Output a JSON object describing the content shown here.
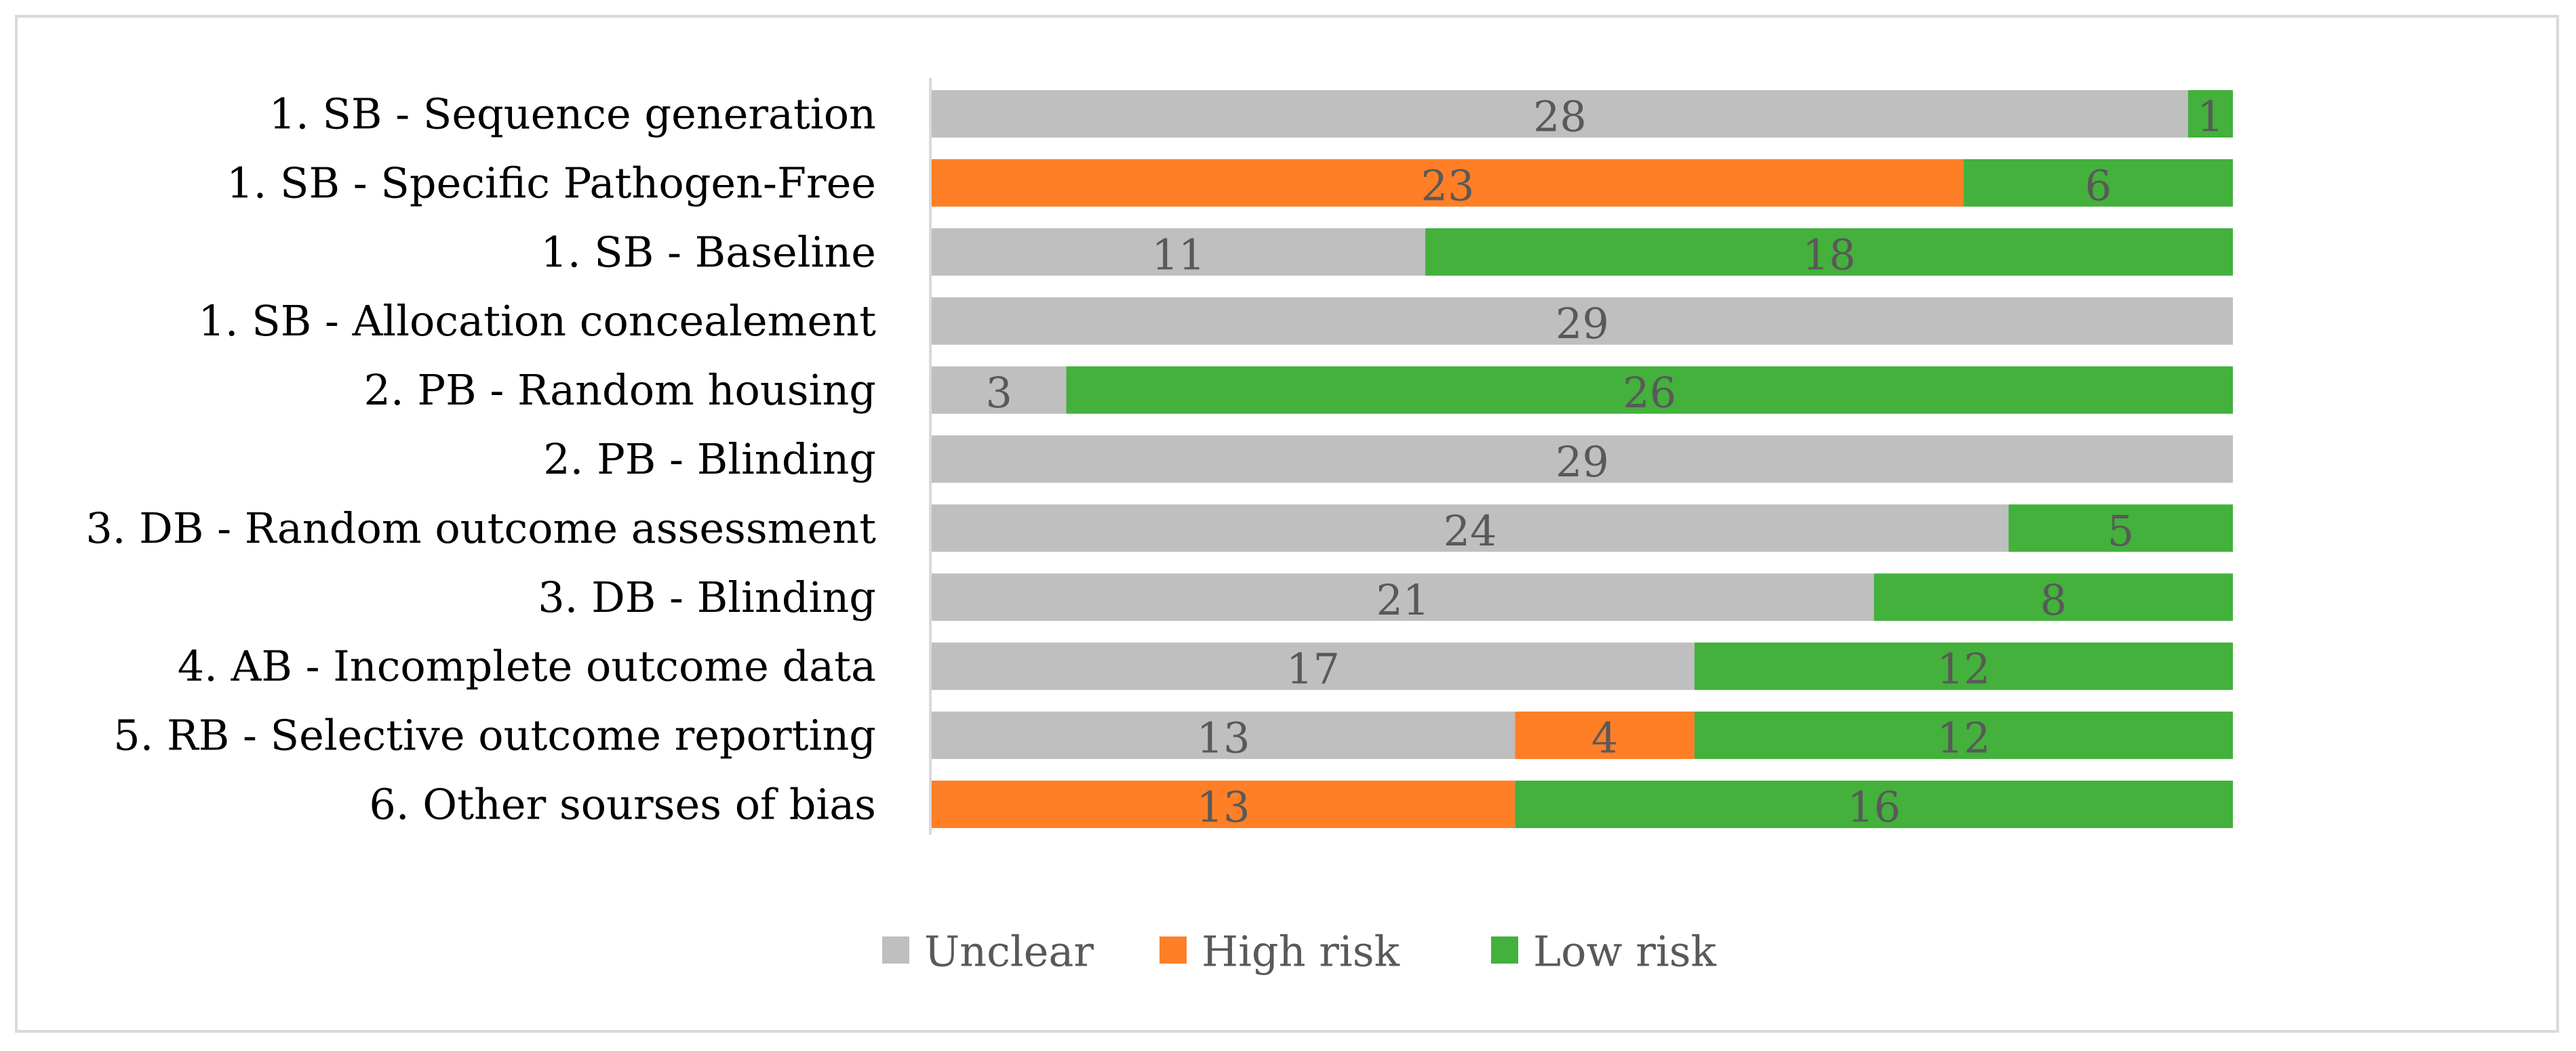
{
  "chart_data": {
    "type": "bar",
    "orientation": "horizontal",
    "stacked": true,
    "title": "",
    "xlabel": "",
    "ylabel": "",
    "xlim": [
      0,
      29
    ],
    "grid": false,
    "legend_position": "bottom",
    "categories": [
      "1. SB - Sequence generation",
      "1. SB - Specific Pathogen-Free",
      "1. SB - Baseline",
      "1. SB - Allocation concealement",
      "2. PB - Random housing",
      "2. PB - Blinding",
      "3. DB - Random outcome assessment",
      "3. DB - Blinding",
      "4. AB - Incomplete outcome data",
      "5. RB - Selective outcome reporting",
      "6. Other sourses of bias"
    ],
    "series": [
      {
        "name": "Unclear",
        "color": "#bfbfbf",
        "values": [
          28,
          0,
          11,
          29,
          3,
          29,
          24,
          21,
          17,
          13,
          0
        ]
      },
      {
        "name": "High risk",
        "color": "#ff7f27",
        "values": [
          0,
          23,
          0,
          0,
          0,
          0,
          0,
          0,
          0,
          4,
          13
        ]
      },
      {
        "name": "Low risk",
        "color": "#43b13c",
        "values": [
          1,
          6,
          18,
          0,
          26,
          0,
          5,
          8,
          12,
          12,
          16
        ]
      }
    ]
  }
}
